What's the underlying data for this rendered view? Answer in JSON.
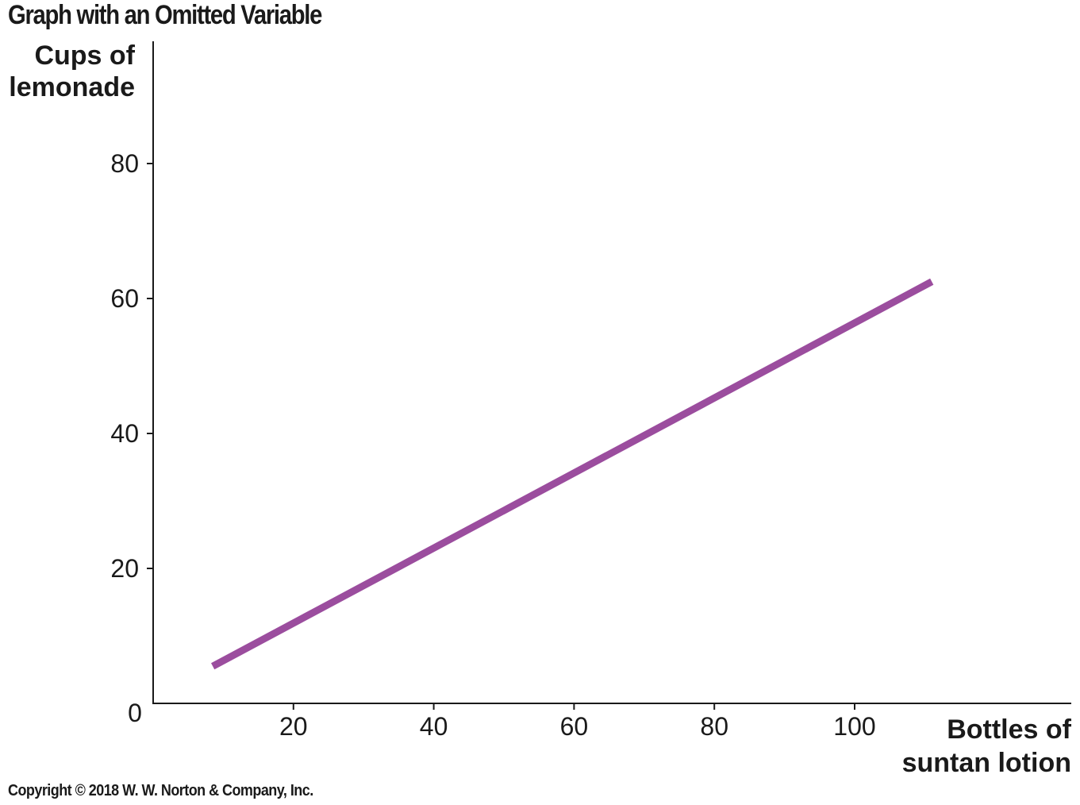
{
  "chart_data": {
    "type": "line",
    "title": "Graph with an Omitted Variable",
    "ylabel": "Cups of\nlemonade",
    "xlabel": "Bottles of\nsuntan lotion",
    "origin_label": "0",
    "xlim": [
      0,
      131
    ],
    "ylim": [
      0,
      98
    ],
    "xticks": [
      20,
      40,
      60,
      80,
      100
    ],
    "yticks": [
      20,
      40,
      60,
      80
    ],
    "grid": false,
    "line_color": "#9b4d9e",
    "series": [
      {
        "x": [
          8.5,
          111
        ],
        "y": [
          5.5,
          62.5
        ]
      }
    ]
  },
  "footer": {
    "copyright": "Copyright © 2018 W. W. Norton & Company, Inc."
  }
}
